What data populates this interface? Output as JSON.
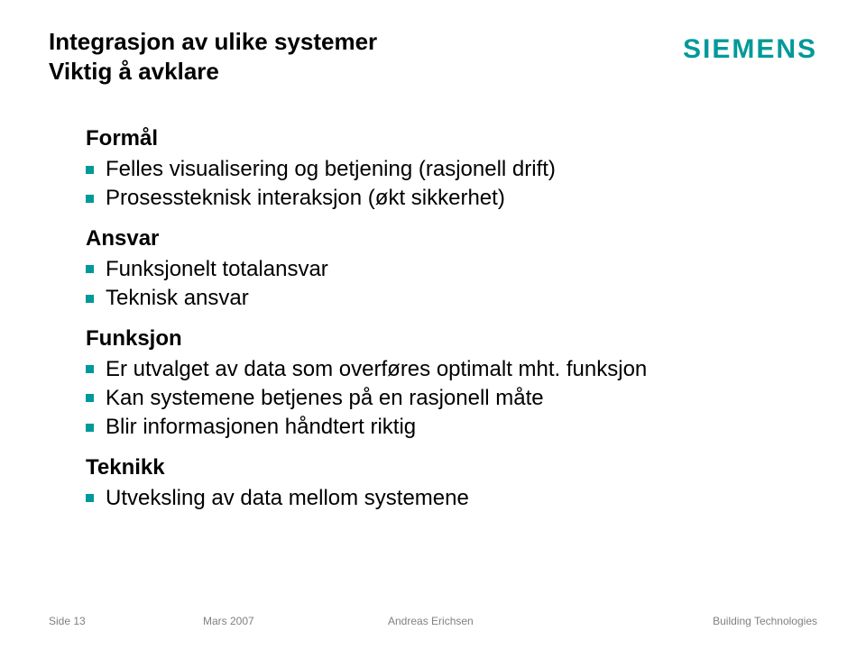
{
  "header": {
    "title_line1": "Integrasjon av ulike systemer",
    "title_line2": "Viktig å avklare",
    "logo_text": "SIEMENS",
    "brand_color": "#009999"
  },
  "sections": {
    "formal": {
      "heading": "Formål",
      "items": [
        "Felles visualisering og betjening (rasjonell drift)",
        "Prosessteknisk interaksjon (økt sikkerhet)"
      ]
    },
    "ansvar": {
      "heading": "Ansvar",
      "items": [
        "Funksjonelt totalansvar",
        "Teknisk ansvar"
      ]
    },
    "funksjon": {
      "heading": "Funksjon",
      "items": [
        "Er utvalget av data som overføres optimalt mht. funksjon",
        "Kan systemene betjenes på en rasjonell måte",
        "Blir informasjonen håndtert riktig"
      ]
    },
    "teknikk": {
      "heading": "Teknikk",
      "items": [
        "Utveksling av data mellom systemene"
      ]
    }
  },
  "footer": {
    "page": "Side 13",
    "date": "Mars 2007",
    "author": "Andreas Erichsen",
    "department": "Building Technologies",
    "text_color": "#808080"
  },
  "bullet_color": "#009999",
  "background_color": "#ffffff"
}
